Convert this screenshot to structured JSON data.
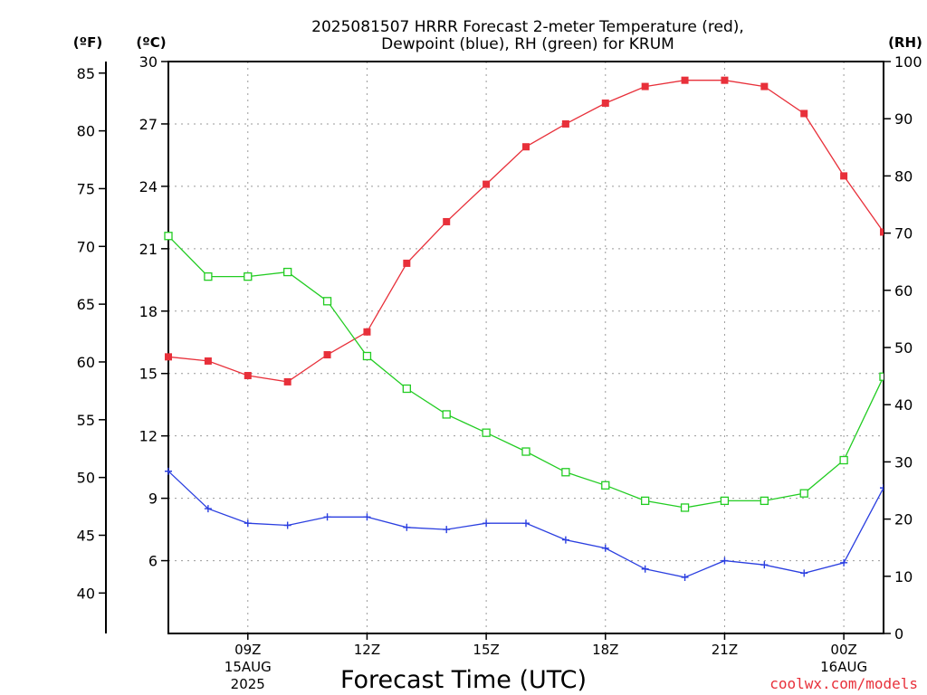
{
  "chart_data": {
    "type": "line",
    "title": [
      "2025081507 HRRR Forecast 2-meter Temperature (red),",
      "Dewpoint (blue), RH (green) for KRUM"
    ],
    "xlabel": "Forecast Time (UTC)",
    "watermark": "coolwx.com/models",
    "left_axis_f_label": "(ºF)",
    "left_axis_c_label": "(ºC)",
    "right_axis_label": "(RH)",
    "x_hours": [
      7,
      8,
      9,
      10,
      11,
      12,
      13,
      14,
      15,
      16,
      17,
      18,
      19,
      20,
      21,
      22,
      23,
      24,
      25
    ],
    "xlim": [
      7,
      25
    ],
    "x_ticks": [
      {
        "hour": 9,
        "label": "09Z",
        "sub1": "15AUG",
        "sub2": "2025"
      },
      {
        "hour": 12,
        "label": "12Z",
        "sub1": "",
        "sub2": ""
      },
      {
        "hour": 15,
        "label": "15Z",
        "sub1": "",
        "sub2": ""
      },
      {
        "hour": 18,
        "label": "18Z",
        "sub1": "",
        "sub2": ""
      },
      {
        "hour": 21,
        "label": "21Z",
        "sub1": "",
        "sub2": ""
      },
      {
        "hour": 24,
        "label": "00Z",
        "sub1": "16AUG",
        "sub2": ""
      }
    ],
    "ylim_c": [
      2.5,
      30
    ],
    "yticks_c": [
      6,
      9,
      12,
      15,
      18,
      21,
      24,
      27,
      30
    ],
    "ylim_f": [
      36.5,
      86
    ],
    "yticks_f": [
      40,
      45,
      50,
      55,
      60,
      65,
      70,
      75,
      80,
      85
    ],
    "ylim_rh": [
      0,
      100
    ],
    "yticks_rh": [
      0,
      10,
      20,
      30,
      40,
      50,
      60,
      70,
      80,
      90,
      100
    ],
    "grid": true,
    "series": [
      {
        "name": "Temperature",
        "axis": "c",
        "color": "#e8303a",
        "marker": "filled-square",
        "values": [
          15.8,
          15.6,
          14.9,
          14.6,
          15.9,
          17.0,
          20.3,
          22.3,
          24.1,
          25.9,
          27.0,
          28.0,
          28.8,
          29.1,
          29.1,
          28.8,
          27.5,
          24.5,
          21.8
        ]
      },
      {
        "name": "Dewpoint",
        "axis": "c",
        "color": "#2b3fe0",
        "marker": "plus",
        "values": [
          10.3,
          8.5,
          7.8,
          7.7,
          8.1,
          8.1,
          7.6,
          7.5,
          7.8,
          7.8,
          7.0,
          6.6,
          5.6,
          5.2,
          6.0,
          5.8,
          5.4,
          5.9,
          9.5
        ]
      },
      {
        "name": "RH",
        "axis": "rh",
        "color": "#22cc22",
        "marker": "open-square",
        "values": [
          69.5,
          62.4,
          62.4,
          63.2,
          58.1,
          48.5,
          42.8,
          38.3,
          35.1,
          31.8,
          28.2,
          25.9,
          23.2,
          22.0,
          23.2,
          23.2,
          24.5,
          30.3,
          44.9
        ]
      }
    ]
  }
}
